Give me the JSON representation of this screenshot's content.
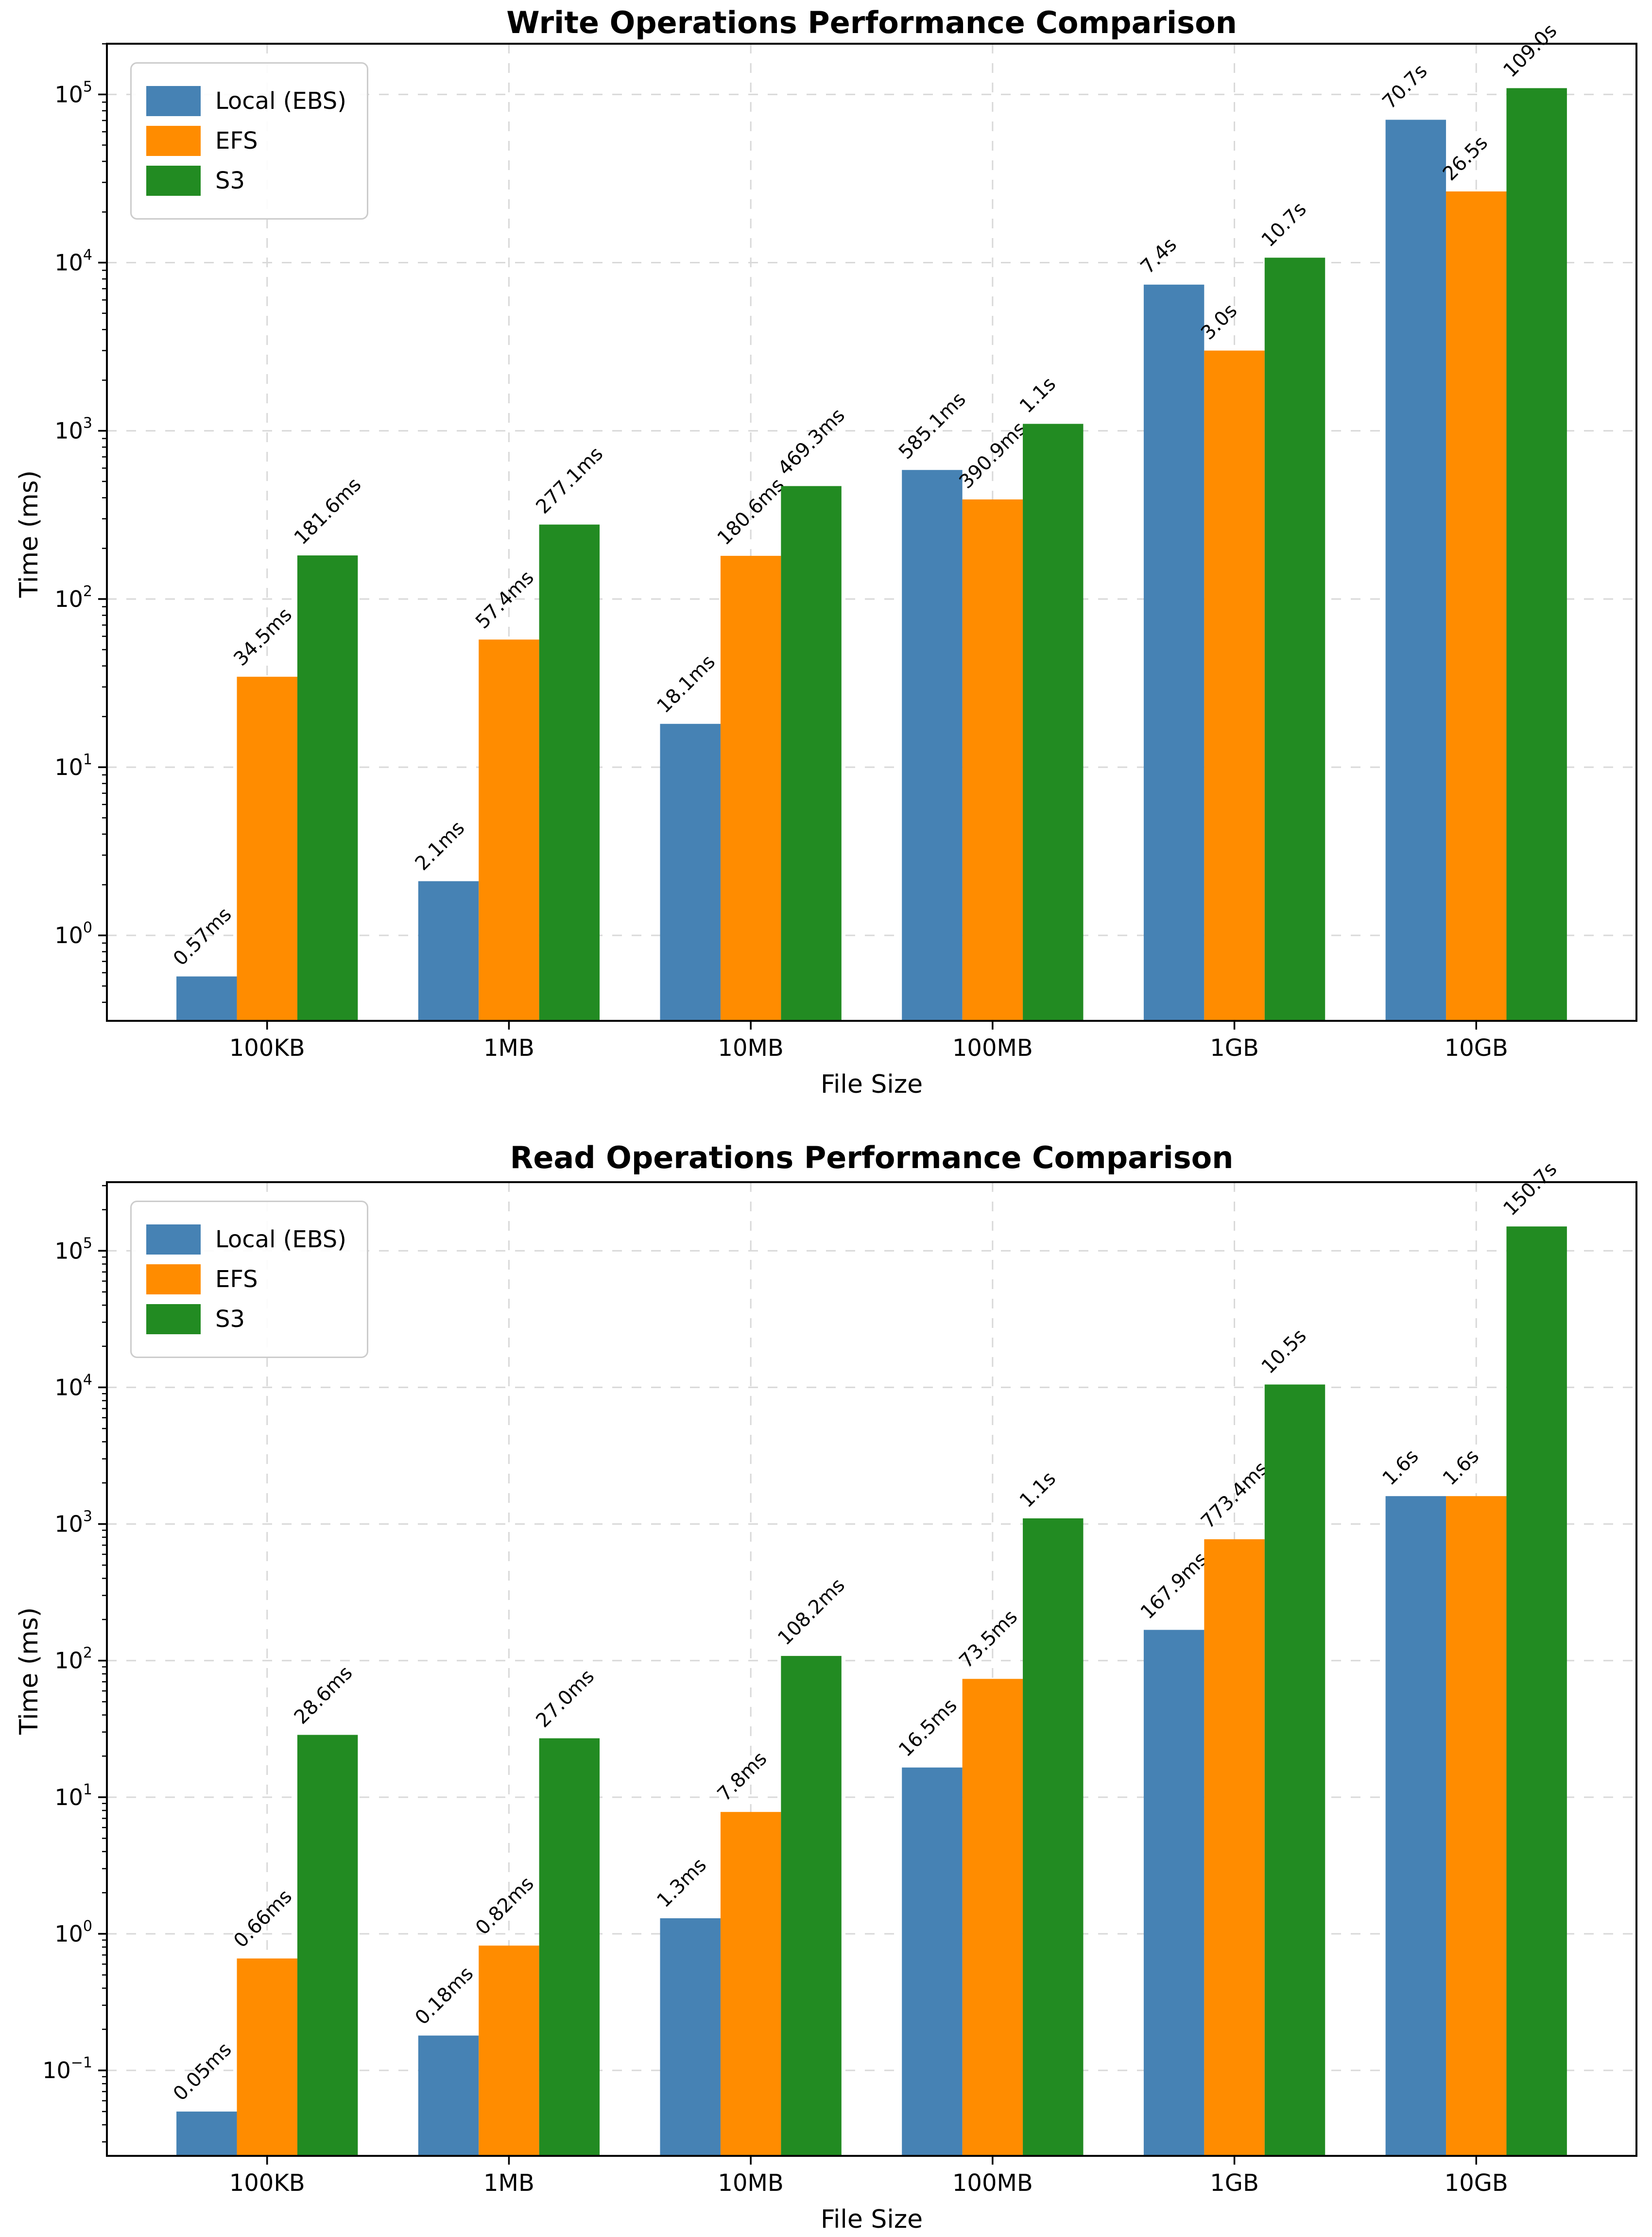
{
  "chart_data": [
    {
      "type": "bar",
      "title": "Write Operations Performance Comparison",
      "xlabel": "File Size",
      "ylabel": "Time (ms)",
      "yscale": "log",
      "grid": true,
      "legend_position": "upper left",
      "categories": [
        "100KB",
        "1MB",
        "10MB",
        "100MB",
        "1GB",
        "10GB"
      ],
      "ytick_exponents": [
        0,
        1,
        2,
        3,
        4,
        5
      ],
      "ylim_log10": [
        -0.5081,
        5.3015
      ],
      "series": [
        {
          "name": "Local (EBS)",
          "color": "#4682B4",
          "values_ms": [
            0.57,
            2.1,
            18.1,
            585.1,
            7400,
            70700
          ],
          "labels": [
            "0.57ms",
            "2.1ms",
            "18.1ms",
            "585.1ms",
            "7.4s",
            "70.7s"
          ]
        },
        {
          "name": "EFS",
          "color": "#FF8C00",
          "values_ms": [
            34.5,
            57.4,
            180.6,
            390.9,
            3000,
            26500
          ],
          "labels": [
            "34.5ms",
            "57.4ms",
            "180.6ms",
            "390.9ms",
            "3.0s",
            "26.5s"
          ]
        },
        {
          "name": "S3",
          "color": "#228B22",
          "values_ms": [
            181.6,
            277.1,
            469.3,
            1100,
            10700,
            109000
          ],
          "labels": [
            "181.6ms",
            "277.1ms",
            "469.3ms",
            "1.1s",
            "10.7s",
            "109.0s"
          ]
        }
      ]
    },
    {
      "type": "bar",
      "title": "Read Operations Performance Comparison",
      "xlabel": "File Size",
      "ylabel": "Time (ms)",
      "yscale": "log",
      "grid": true,
      "legend_position": "upper left",
      "categories": [
        "100KB",
        "1MB",
        "10MB",
        "100MB",
        "1GB",
        "10GB"
      ],
      "ytick_exponents": [
        -1,
        0,
        1,
        2,
        3,
        4,
        5
      ],
      "ylim_log10": [
        -1.6254,
        5.5025
      ],
      "series": [
        {
          "name": "Local (EBS)",
          "color": "#4682B4",
          "values_ms": [
            0.05,
            0.18,
            1.3,
            16.5,
            167.9,
            1600
          ],
          "labels": [
            "0.05ms",
            "0.18ms",
            "1.3ms",
            "16.5ms",
            "167.9ms",
            "1.6s"
          ]
        },
        {
          "name": "EFS",
          "color": "#FF8C00",
          "values_ms": [
            0.66,
            0.82,
            7.8,
            73.5,
            773.4,
            1600
          ],
          "labels": [
            "0.66ms",
            "0.82ms",
            "7.8ms",
            "73.5ms",
            "773.4ms",
            "1.6s"
          ]
        },
        {
          "name": "S3",
          "color": "#228B22",
          "values_ms": [
            28.6,
            27.0,
            108.2,
            1100,
            10500,
            150700
          ],
          "labels": [
            "28.6ms",
            "27.0ms",
            "108.2ms",
            "1.1s",
            "10.5s",
            "150.7s"
          ]
        }
      ]
    }
  ],
  "styles": {
    "background": "#ffffff",
    "grid_color": "#d9d9d9",
    "spine_color": "#000000",
    "legend_border": "#cccccc"
  }
}
